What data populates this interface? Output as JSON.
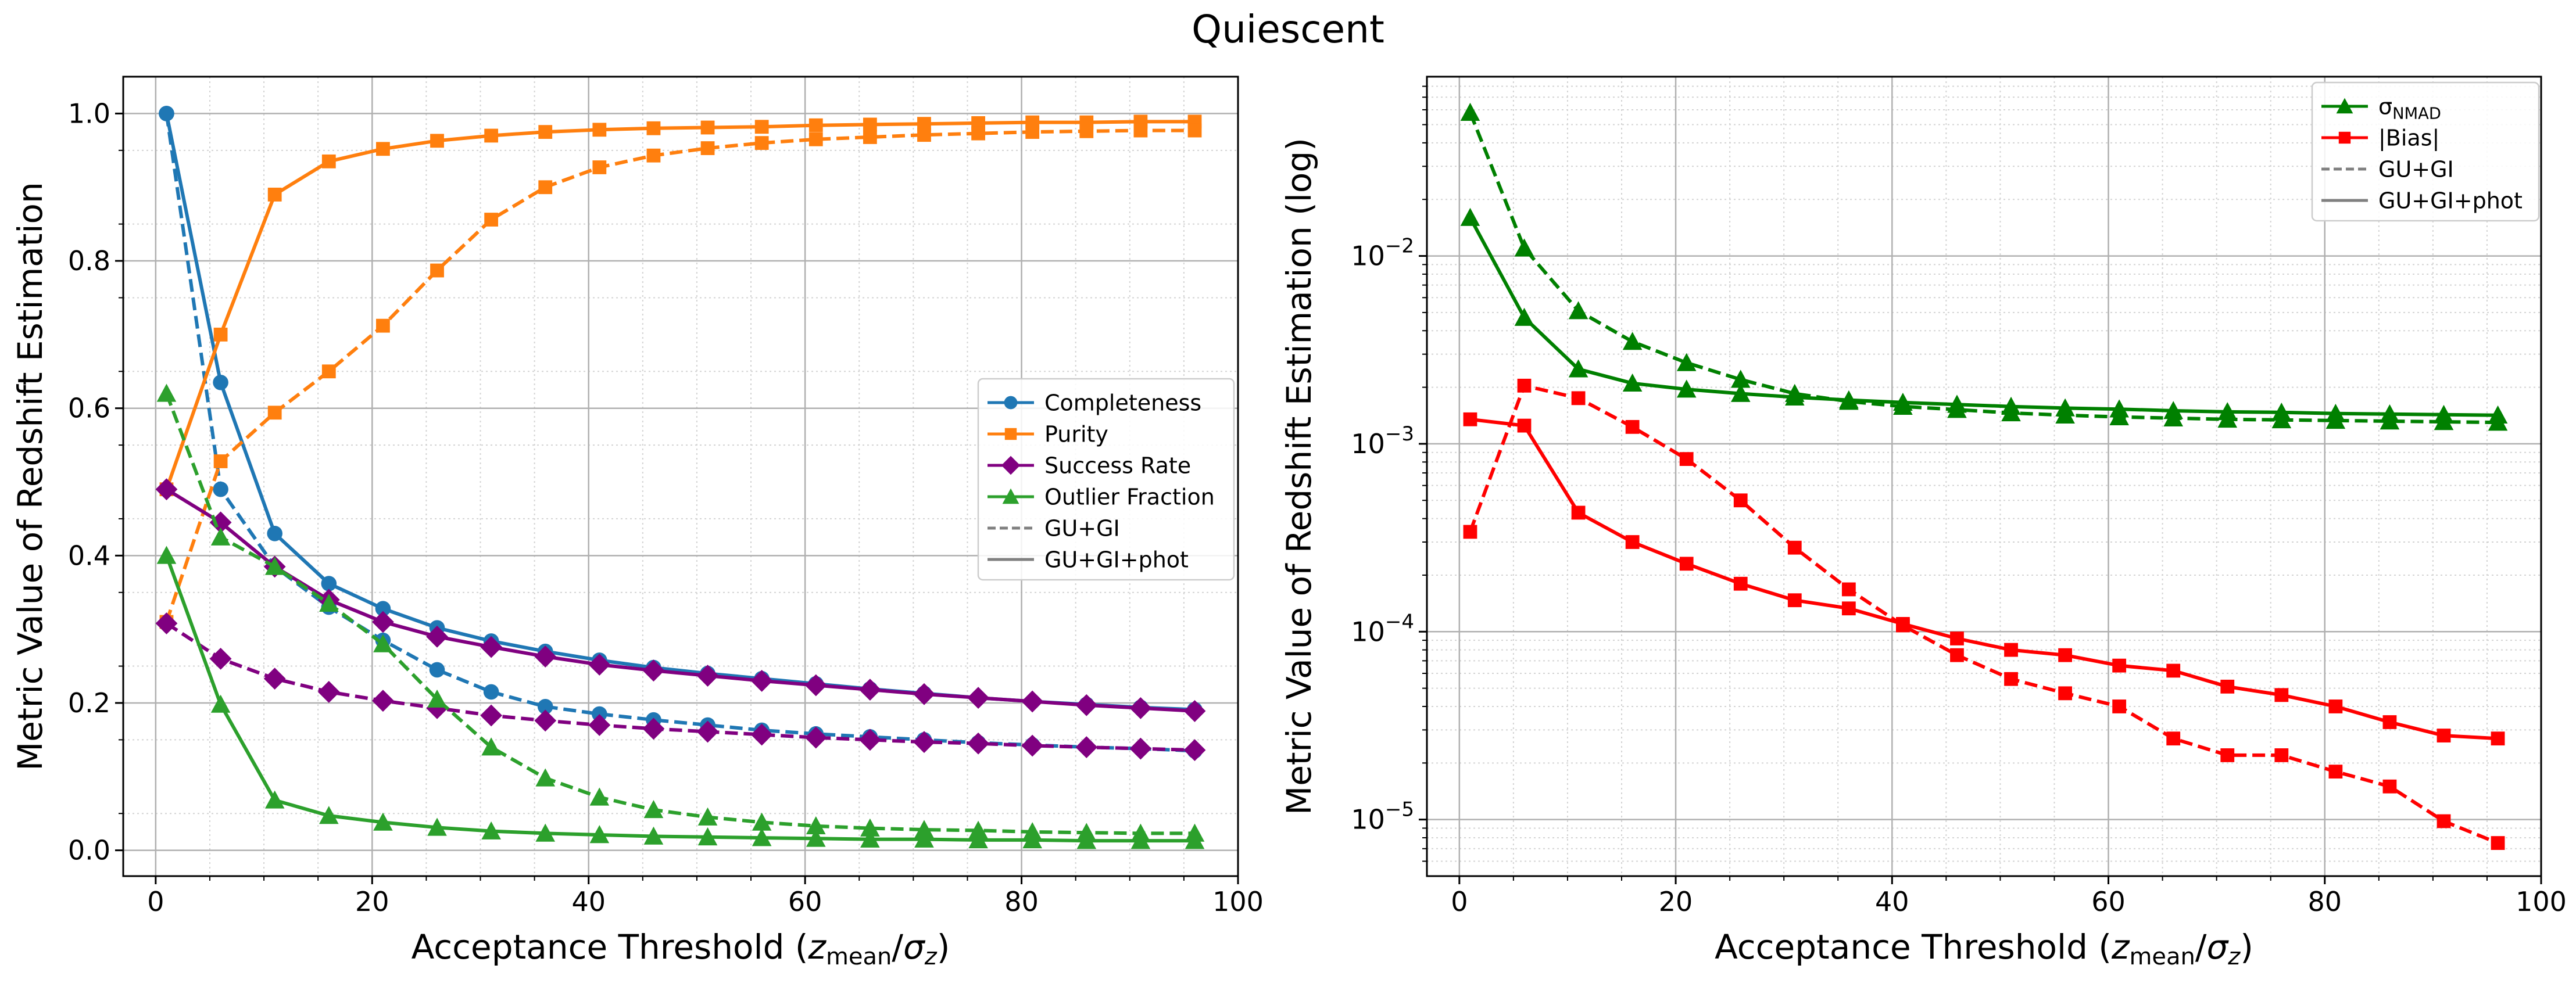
{
  "figure_title": "Quiescent",
  "chart_data": [
    {
      "type": "line",
      "xlabel_main": "Acceptance Threshold (",
      "xlabel_z": "z",
      "xlabel_mean": "mean",
      "xlabel_sigma": "σ",
      "xlabel_sub": "z",
      "xlabel_close": ")",
      "ylabel": "Metric Value of Redshift Estimation",
      "xlim": [
        -3,
        100
      ],
      "ylim": [
        -0.035,
        1.05
      ],
      "xticks": [
        0,
        20,
        40,
        60,
        80,
        100
      ],
      "xtick_labels": [
        "0",
        "20",
        "40",
        "60",
        "80",
        "100"
      ],
      "yticks": [
        0.0,
        0.2,
        0.4,
        0.6,
        0.8,
        1.0
      ],
      "ytick_labels": [
        "0.0",
        "0.2",
        "0.4",
        "0.6",
        "0.8",
        "1.0"
      ],
      "x": [
        1,
        6,
        11,
        16,
        21,
        26,
        31,
        36,
        41,
        46,
        51,
        56,
        61,
        66,
        71,
        76,
        81,
        86,
        91,
        96
      ],
      "series": [
        {
          "name": "Completeness",
          "variant": "GU+GI+phot",
          "color": "#1f77b4",
          "marker": "circle",
          "values": [
            1.0,
            0.635,
            0.43,
            0.362,
            0.328,
            0.302,
            0.284,
            0.27,
            0.258,
            0.248,
            0.24,
            0.233,
            0.226,
            0.219,
            0.213,
            0.207,
            0.202,
            0.198,
            0.194,
            0.191
          ]
        },
        {
          "name": "Completeness",
          "variant": "GU+GI",
          "color": "#1f77b4",
          "marker": "circle",
          "values": [
            1.0,
            0.49,
            0.385,
            0.33,
            0.285,
            0.245,
            0.215,
            0.195,
            0.185,
            0.177,
            0.17,
            0.163,
            0.158,
            0.154,
            0.15,
            0.146,
            0.143,
            0.14,
            0.138,
            0.135
          ]
        },
        {
          "name": "Purity",
          "variant": "GU+GI+phot",
          "color": "#ff7f0e",
          "marker": "square",
          "values": [
            0.49,
            0.7,
            0.89,
            0.935,
            0.952,
            0.963,
            0.97,
            0.975,
            0.978,
            0.98,
            0.981,
            0.982,
            0.984,
            0.985,
            0.986,
            0.987,
            0.988,
            0.988,
            0.989,
            0.989
          ]
        },
        {
          "name": "Purity",
          "variant": "GU+GI",
          "color": "#ff7f0e",
          "marker": "square",
          "values": [
            0.31,
            0.528,
            0.594,
            0.65,
            0.712,
            0.787,
            0.856,
            0.9,
            0.927,
            0.943,
            0.953,
            0.96,
            0.965,
            0.968,
            0.971,
            0.973,
            0.975,
            0.976,
            0.977,
            0.977
          ]
        },
        {
          "name": "Success Rate",
          "variant": "GU+GI+phot",
          "color": "#800080",
          "marker": "diamond",
          "values": [
            0.49,
            0.445,
            0.385,
            0.34,
            0.31,
            0.29,
            0.276,
            0.263,
            0.252,
            0.244,
            0.237,
            0.23,
            0.224,
            0.218,
            0.212,
            0.207,
            0.202,
            0.197,
            0.193,
            0.189
          ]
        },
        {
          "name": "Success Rate",
          "variant": "GU+GI",
          "color": "#800080",
          "marker": "diamond",
          "values": [
            0.308,
            0.26,
            0.233,
            0.215,
            0.203,
            0.193,
            0.183,
            0.176,
            0.17,
            0.165,
            0.161,
            0.157,
            0.153,
            0.15,
            0.147,
            0.145,
            0.142,
            0.14,
            0.138,
            0.136
          ]
        },
        {
          "name": "Outlier Fraction",
          "variant": "GU+GI+phot",
          "color": "#2ca02c",
          "marker": "triangle",
          "values": [
            0.4,
            0.198,
            0.068,
            0.047,
            0.038,
            0.031,
            0.026,
            0.023,
            0.021,
            0.019,
            0.018,
            0.017,
            0.016,
            0.015,
            0.015,
            0.014,
            0.014,
            0.013,
            0.013,
            0.013
          ]
        },
        {
          "name": "Outlier Fraction",
          "variant": "GU+GI",
          "color": "#2ca02c",
          "marker": "triangle",
          "values": [
            0.62,
            0.425,
            0.385,
            0.335,
            0.28,
            0.205,
            0.14,
            0.098,
            0.072,
            0.055,
            0.045,
            0.038,
            0.033,
            0.03,
            0.028,
            0.027,
            0.025,
            0.024,
            0.023,
            0.023
          ]
        }
      ],
      "legend": [
        {
          "label": "Completeness",
          "color": "#1f77b4",
          "marker": "circle",
          "dash": false
        },
        {
          "label": "Purity",
          "color": "#ff7f0e",
          "marker": "square",
          "dash": false
        },
        {
          "label": "Success Rate",
          "color": "#800080",
          "marker": "diamond",
          "dash": false
        },
        {
          "label": "Outlier Fraction",
          "color": "#2ca02c",
          "marker": "triangle",
          "dash": false
        },
        {
          "label": "GU+GI",
          "color": "#808080",
          "marker": "none",
          "dash": true
        },
        {
          "label": "GU+GI+phot",
          "color": "#808080",
          "marker": "none",
          "dash": false
        }
      ],
      "legend_position": "center-right",
      "grid": true
    },
    {
      "type": "line",
      "yscale": "log",
      "xlabel_main": "Acceptance Threshold (",
      "xlabel_z": "z",
      "xlabel_mean": "mean",
      "xlabel_sigma": "σ",
      "xlabel_sub": "z",
      "xlabel_close": ")",
      "ylabel": "Metric Value of Redshift Estimation (log)",
      "xlim": [
        -3,
        100
      ],
      "ylim": [
        5e-06,
        0.09
      ],
      "xticks": [
        0,
        20,
        40,
        60,
        80,
        100
      ],
      "xtick_labels": [
        "0",
        "20",
        "40",
        "60",
        "80",
        "100"
      ],
      "yticks": [
        1e-05,
        0.0001,
        0.001,
        0.01
      ],
      "ytick_base": "10",
      "ytick_exponents": [
        "−5",
        "−4",
        "−3",
        "−2"
      ],
      "x": [
        1,
        6,
        11,
        16,
        21,
        26,
        31,
        36,
        41,
        46,
        51,
        56,
        61,
        66,
        71,
        76,
        81,
        86,
        91,
        96
      ],
      "series": [
        {
          "name": "σNMAD",
          "variant": "GU+GI+phot",
          "color": "#008000",
          "marker": "triangle",
          "values": [
            0.016,
            0.0047,
            0.0025,
            0.0021,
            0.00195,
            0.00185,
            0.00177,
            0.00171,
            0.00166,
            0.00162,
            0.00158,
            0.00155,
            0.00153,
            0.0015,
            0.00148,
            0.00147,
            0.00145,
            0.00144,
            0.00143,
            0.00142
          ]
        },
        {
          "name": "σNMAD",
          "variant": "GU+GI",
          "color": "#008000",
          "marker": "triangle",
          "values": [
            0.058,
            0.011,
            0.0051,
            0.0035,
            0.0027,
            0.0022,
            0.00185,
            0.00168,
            0.00158,
            0.00152,
            0.00146,
            0.00142,
            0.00139,
            0.00137,
            0.00135,
            0.00134,
            0.00133,
            0.00132,
            0.00131,
            0.0013
          ]
        },
        {
          "name": "|Bias|",
          "variant": "GU+GI+phot",
          "color": "#ff0000",
          "marker": "square",
          "values": [
            0.00135,
            0.00125,
            0.00043,
            0.0003,
            0.00023,
            0.00018,
            0.000147,
            0.000133,
            0.00011,
            9.2e-05,
            8e-05,
            7.5e-05,
            6.6e-05,
            6.2e-05,
            5.1e-05,
            4.6e-05,
            4e-05,
            3.3e-05,
            2.8e-05,
            2.7e-05
          ]
        },
        {
          "name": "|Bias|",
          "variant": "GU+GI",
          "color": "#ff0000",
          "marker": "square",
          "values": [
            0.00034,
            0.00204,
            0.00175,
            0.00123,
            0.00083,
            0.0005,
            0.00028,
            0.000168,
            0.000108,
            7.5e-05,
            5.6e-05,
            4.7e-05,
            4e-05,
            2.7e-05,
            2.2e-05,
            2.2e-05,
            1.8e-05,
            1.5e-05,
            9.8e-06,
            7.5e-06
          ]
        }
      ],
      "legend": [
        {
          "label": "σ",
          "sub": "NMAD",
          "color": "#008000",
          "marker": "triangle",
          "dash": false
        },
        {
          "label": "|Bias|",
          "sub": "",
          "color": "#ff0000",
          "marker": "square",
          "dash": false
        },
        {
          "label": "GU+GI",
          "sub": "",
          "color": "#808080",
          "marker": "none",
          "dash": true
        },
        {
          "label": "GU+GI+phot",
          "sub": "",
          "color": "#808080",
          "marker": "none",
          "dash": false
        }
      ],
      "legend_position": "top-right",
      "grid": true
    }
  ]
}
